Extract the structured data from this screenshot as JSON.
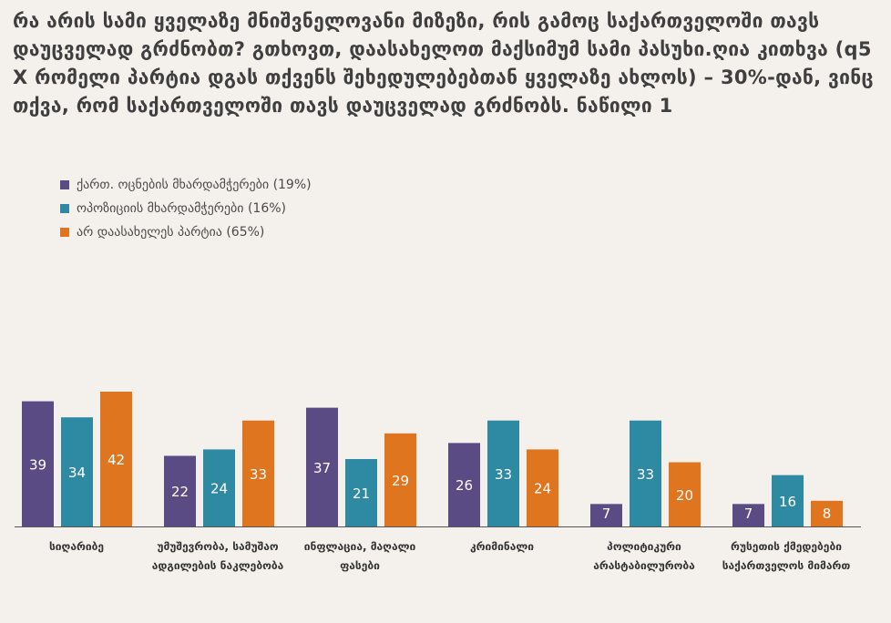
{
  "title": "რა არის სამი ყველაზე მნიშვნელოვანი მიზეზი, რის გამოც საქართველოში თავს დაუცველად გრძნობთ? გთხოვთ, დაასახელოთ მაქსიმუმ სამი პასუხი.ღია კითხვა (q5 X რომელი პარტია დგას თქვენს შეხედულებებთან ყველაზე ახლოს) – 30%-დან, ვინც თქვა, რომ საქართველოში თავს დაუცველად გრძნობს. ნაწილი 1",
  "colors": {
    "series1": "#5b4b84",
    "series2": "#2e8aa2",
    "series3": "#e07520"
  },
  "chart_data": {
    "type": "bar",
    "categories": [
      "სიღარიბე",
      "უმუშევრობა, სამუშაო ადგილების ნაკლებობა",
      "ინფლაცია, მაღალი ფასები",
      "კრიმინალი",
      "პოლიტიკური არასტაბილურობა",
      "რუსეთის ქმედებები საქართველოს მიმართ"
    ],
    "series": [
      {
        "name": "ქართ. ოცნების მხარდამჭერები (19%)",
        "values": [
          39,
          22,
          37,
          26,
          7,
          7
        ]
      },
      {
        "name": "ოპოზიციის მხარდამჭერები (16%)",
        "values": [
          34,
          24,
          21,
          33,
          33,
          16
        ]
      },
      {
        "name": "არ დაასახელეს პარტია (65%)",
        "values": [
          42,
          33,
          29,
          24,
          20,
          8
        ]
      }
    ],
    "ylim": [
      0,
      42
    ],
    "grid": false,
    "legend": "top-left"
  }
}
